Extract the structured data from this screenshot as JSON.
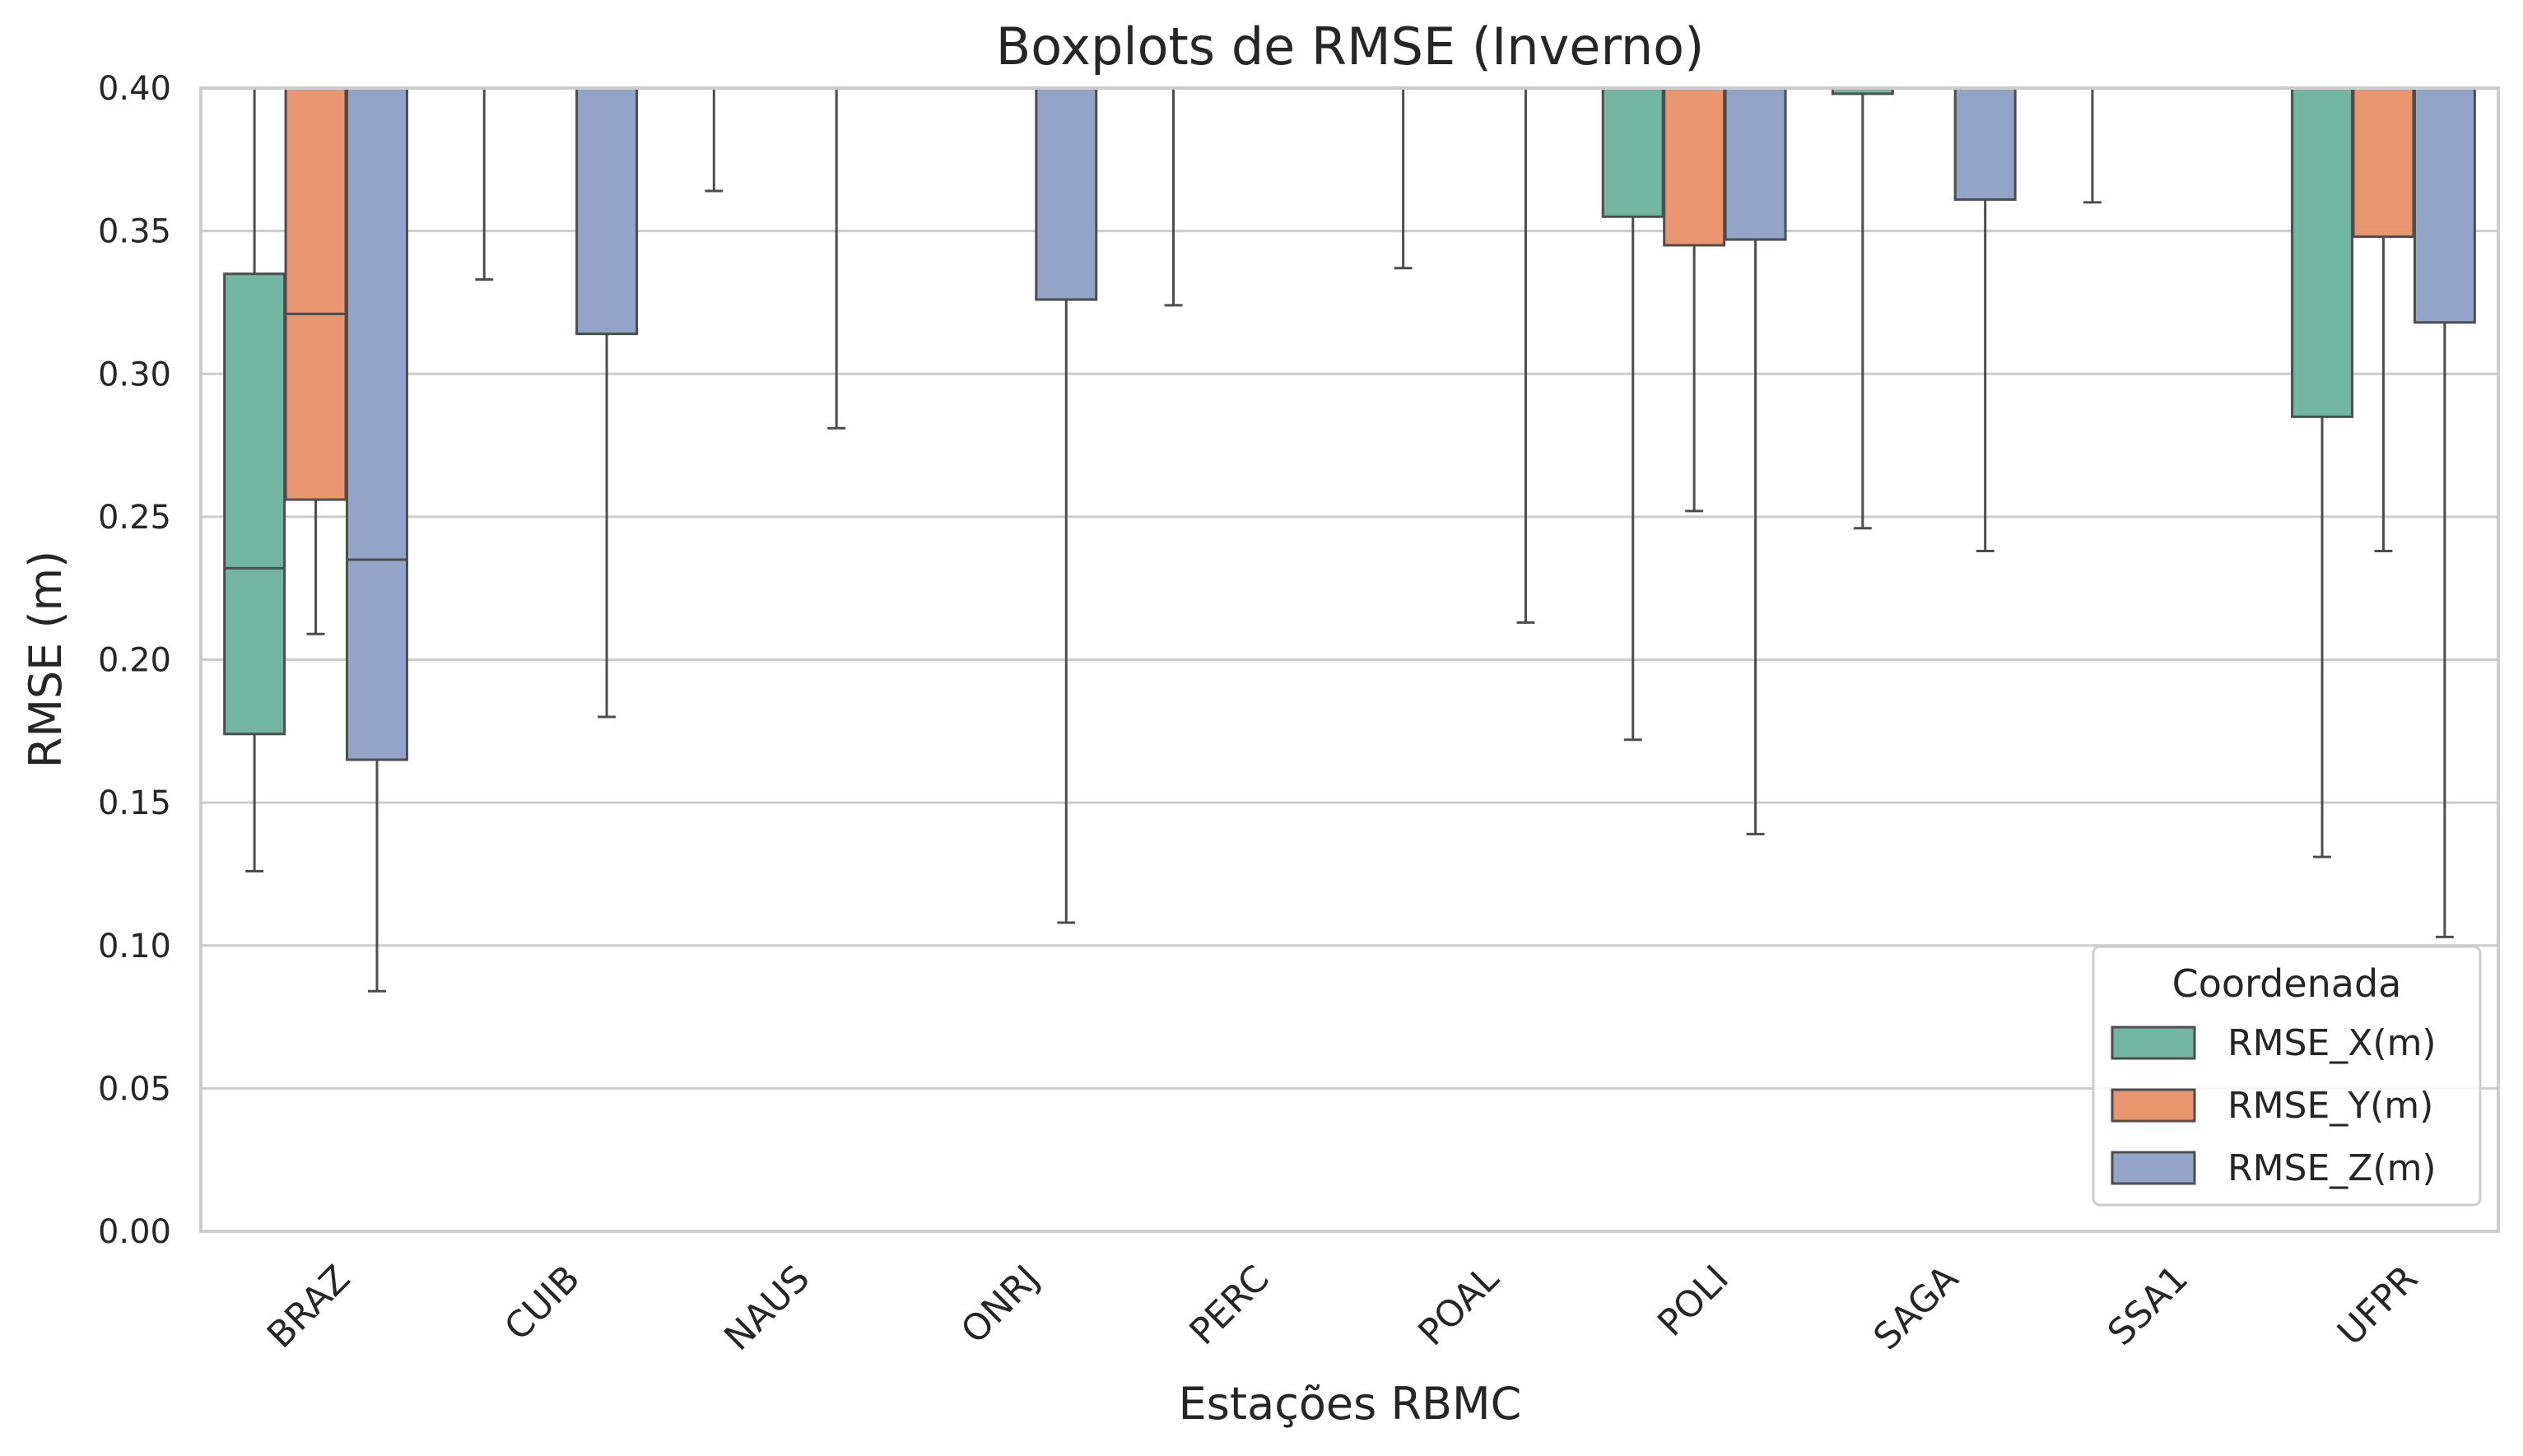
{
  "chart_data": {
    "type": "boxplot",
    "title": "Boxplots de RMSE (Inverno)",
    "xlabel": "Estações RBMC",
    "ylabel": "RMSE (m)",
    "ylim": [
      0.0,
      0.4
    ],
    "yticks": [
      "0.00",
      "0.05",
      "0.10",
      "0.15",
      "0.20",
      "0.25",
      "0.30",
      "0.35",
      "0.40"
    ],
    "categories": [
      "BRAZ",
      "CUIB",
      "NAUS",
      "ONRJ",
      "PERC",
      "POAL",
      "POLI",
      "SAGA",
      "SSA1",
      "UFPR"
    ],
    "grid": "horizontal",
    "legend": {
      "title": "Coordenada",
      "placement": "lower-right"
    },
    "series": [
      {
        "name": "RMSE_X(m)",
        "color": "#72b6a1",
        "boxes": [
          {
            "category": "BRAZ",
            "whisker_low": 0.126,
            "q1": 0.174,
            "median": 0.232,
            "q3": 0.335,
            "whisker_high": 0.4
          },
          {
            "category": "CUIB",
            "whisker_low": 0.333,
            "q1": 0.4,
            "median": 0.4,
            "q3": 0.4,
            "whisker_high": 0.4
          },
          {
            "category": "NAUS",
            "whisker_low": 0.364,
            "q1": 0.4,
            "median": 0.4,
            "q3": 0.4,
            "whisker_high": 0.4
          },
          {
            "category": "ONRJ",
            "whisker_low": 0.4,
            "q1": 0.4,
            "median": 0.4,
            "q3": 0.4,
            "whisker_high": 0.4
          },
          {
            "category": "PERC",
            "whisker_low": 0.324,
            "q1": 0.4,
            "median": 0.4,
            "q3": 0.4,
            "whisker_high": 0.4
          },
          {
            "category": "POAL",
            "whisker_low": 0.337,
            "q1": 0.4,
            "median": 0.4,
            "q3": 0.4,
            "whisker_high": 0.4
          },
          {
            "category": "POLI",
            "whisker_low": 0.172,
            "q1": 0.355,
            "median": 0.4,
            "q3": 0.4,
            "whisker_high": 0.4
          },
          {
            "category": "SAGA",
            "whisker_low": 0.246,
            "q1": 0.398,
            "median": 0.4,
            "q3": 0.4,
            "whisker_high": 0.4
          },
          {
            "category": "SSA1",
            "whisker_low": 0.36,
            "q1": 0.4,
            "median": 0.4,
            "q3": 0.4,
            "whisker_high": 0.4
          },
          {
            "category": "UFPR",
            "whisker_low": 0.131,
            "q1": 0.285,
            "median": 0.4,
            "q3": 0.4,
            "whisker_high": 0.4
          }
        ]
      },
      {
        "name": "RMSE_Y(m)",
        "color": "#e9956f",
        "boxes": [
          {
            "category": "BRAZ",
            "whisker_low": 0.209,
            "q1": 0.256,
            "median": 0.321,
            "q3": 0.4,
            "whisker_high": 0.4
          },
          {
            "category": "CUIB",
            "whisker_low": 0.4,
            "q1": 0.4,
            "median": 0.4,
            "q3": 0.4,
            "whisker_high": 0.4
          },
          {
            "category": "NAUS",
            "whisker_low": 0.4,
            "q1": 0.4,
            "median": 0.4,
            "q3": 0.4,
            "whisker_high": 0.4
          },
          {
            "category": "ONRJ",
            "whisker_low": 0.4,
            "q1": 0.4,
            "median": 0.4,
            "q3": 0.4,
            "whisker_high": 0.4
          },
          {
            "category": "PERC",
            "whisker_low": 0.4,
            "q1": 0.4,
            "median": 0.4,
            "q3": 0.4,
            "whisker_high": 0.4
          },
          {
            "category": "POAL",
            "whisker_low": 0.4,
            "q1": 0.4,
            "median": 0.4,
            "q3": 0.4,
            "whisker_high": 0.4
          },
          {
            "category": "POLI",
            "whisker_low": 0.252,
            "q1": 0.345,
            "median": 0.4,
            "q3": 0.4,
            "whisker_high": 0.4
          },
          {
            "category": "SAGA",
            "whisker_low": 0.4,
            "q1": 0.4,
            "median": 0.4,
            "q3": 0.4,
            "whisker_high": 0.4
          },
          {
            "category": "SSA1",
            "whisker_low": 0.4,
            "q1": 0.4,
            "median": 0.4,
            "q3": 0.4,
            "whisker_high": 0.4
          },
          {
            "category": "UFPR",
            "whisker_low": 0.238,
            "q1": 0.348,
            "median": 0.4,
            "q3": 0.4,
            "whisker_high": 0.4
          }
        ]
      },
      {
        "name": "RMSE_Z(m)",
        "color": "#92a4c7",
        "boxes": [
          {
            "category": "BRAZ",
            "whisker_low": 0.084,
            "q1": 0.165,
            "median": 0.235,
            "q3": 0.4,
            "whisker_high": 0.4
          },
          {
            "category": "CUIB",
            "whisker_low": 0.18,
            "q1": 0.314,
            "median": 0.4,
            "q3": 0.4,
            "whisker_high": 0.4
          },
          {
            "category": "NAUS",
            "whisker_low": 0.281,
            "q1": 0.4,
            "median": 0.4,
            "q3": 0.4,
            "whisker_high": 0.4
          },
          {
            "category": "ONRJ",
            "whisker_low": 0.108,
            "q1": 0.326,
            "median": 0.4,
            "q3": 0.4,
            "whisker_high": 0.4
          },
          {
            "category": "PERC",
            "whisker_low": 0.4,
            "q1": 0.4,
            "median": 0.4,
            "q3": 0.4,
            "whisker_high": 0.4
          },
          {
            "category": "POAL",
            "whisker_low": 0.213,
            "q1": 0.4,
            "median": 0.4,
            "q3": 0.4,
            "whisker_high": 0.4
          },
          {
            "category": "POLI",
            "whisker_low": 0.139,
            "q1": 0.347,
            "median": 0.4,
            "q3": 0.4,
            "whisker_high": 0.4
          },
          {
            "category": "SAGA",
            "whisker_low": 0.238,
            "q1": 0.361,
            "median": 0.4,
            "q3": 0.4,
            "whisker_high": 0.4
          },
          {
            "category": "SSA1",
            "whisker_low": 0.4,
            "q1": 0.4,
            "median": 0.4,
            "q3": 0.4,
            "whisker_high": 0.4
          },
          {
            "category": "UFPR",
            "whisker_low": 0.103,
            "q1": 0.318,
            "median": 0.4,
            "q3": 0.4,
            "whisker_high": 0.4
          }
        ]
      }
    ]
  }
}
